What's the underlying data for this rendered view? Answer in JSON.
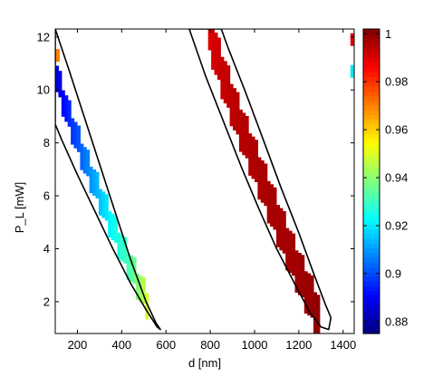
{
  "chart_data": {
    "type": "heatmap",
    "title": "",
    "xlabel": "d [nm]",
    "ylabel": "P_L [mW]",
    "xlim": [
      100,
      1450
    ],
    "ylim": [
      0.8,
      12.3
    ],
    "x_ticks": [
      200,
      400,
      600,
      800,
      1000,
      1200,
      1400
    ],
    "y_ticks": [
      2,
      4,
      6,
      8,
      10,
      12
    ],
    "colorbar": {
      "colormap": "jet",
      "clim": [
        0.875,
        1.002
      ],
      "ticks": [
        0.88,
        0.9,
        0.92,
        0.94,
        0.96,
        0.98,
        1
      ],
      "tick_labels": [
        "0.88",
        "0.9",
        "0.92",
        "0.94",
        "0.96",
        "0.98",
        "1"
      ]
    },
    "regions": [
      {
        "outline": [
          [
            100,
            12.3
          ],
          [
            160,
            10.8
          ],
          [
            230,
            9.0
          ],
          [
            300,
            7.2
          ],
          [
            370,
            5.4
          ],
          [
            440,
            3.6
          ],
          [
            510,
            2.0
          ],
          [
            555,
            1.2
          ],
          [
            575,
            0.95
          ],
          [
            560,
            1.05
          ],
          [
            510,
            1.7
          ],
          [
            440,
            2.7
          ],
          [
            360,
            4.0
          ],
          [
            280,
            5.4
          ],
          [
            200,
            6.8
          ],
          [
            130,
            8.1
          ],
          [
            100,
            8.7
          ]
        ],
        "band": [
          [
            100,
            10.6
          ],
          [
            160,
            9.0
          ],
          [
            230,
            7.4
          ],
          [
            300,
            6.0
          ],
          [
            370,
            4.6
          ],
          [
            440,
            3.3
          ],
          [
            490,
            2.4
          ],
          [
            525,
            1.8
          ]
        ],
        "band_width_mW": 1.0,
        "values": [
          0.885,
          0.895,
          0.905,
          0.915,
          0.925,
          0.933,
          0.943,
          0.952
        ]
      },
      {
        "outline": [
          [
            705,
            12.3
          ],
          [
            780,
            10.5
          ],
          [
            860,
            8.8
          ],
          [
            940,
            7.1
          ],
          [
            1020,
            5.5
          ],
          [
            1100,
            4.0
          ],
          [
            1180,
            2.7
          ],
          [
            1250,
            1.6
          ],
          [
            1300,
            1.05
          ],
          [
            1335,
            0.95
          ],
          [
            1345,
            1.4
          ],
          [
            1320,
            1.9
          ],
          [
            1270,
            3.0
          ],
          [
            1200,
            4.6
          ],
          [
            1120,
            6.3
          ],
          [
            1040,
            8.1
          ],
          [
            960,
            9.9
          ],
          [
            880,
            11.6
          ],
          [
            850,
            12.3
          ]
        ],
        "band": [
          [
            790,
            12.3
          ],
          [
            850,
            10.7
          ],
          [
            920,
            9.0
          ],
          [
            990,
            7.5
          ],
          [
            1060,
            6.0
          ],
          [
            1130,
            4.5
          ],
          [
            1200,
            3.1
          ],
          [
            1260,
            2.0
          ],
          [
            1290,
            1.4
          ]
        ],
        "band_width_mW": 1.6,
        "values": [
          0.99,
          0.993,
          0.995,
          0.996,
          0.997,
          0.997,
          0.998,
          0.999,
          1.0
        ]
      }
    ],
    "edge_marks": [
      {
        "x": 1445,
        "y": 11.9,
        "value": 0.99
      },
      {
        "x": 1445,
        "y": 10.7,
        "value": 0.92
      },
      {
        "x": 108,
        "y": 11.3,
        "value": 0.97
      }
    ]
  }
}
